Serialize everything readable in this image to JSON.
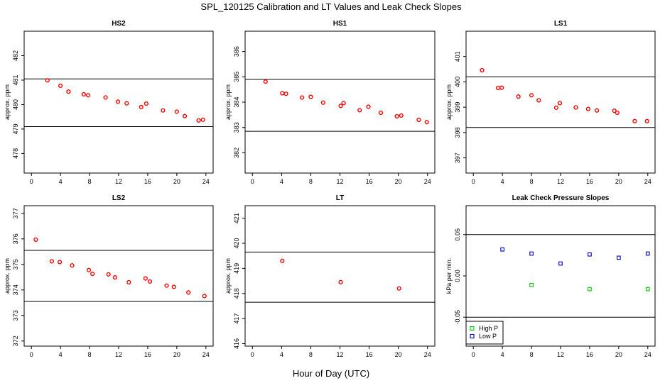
{
  "page": {
    "title": "SPL_120125  Calibration and LT Values and Leak Check Slopes",
    "xlabel": "Hour of Day (UTC)"
  },
  "colors": {
    "ref_line": "#000000",
    "point_red": "#ff0000",
    "high_p": "#00cc00",
    "low_p": "#0000cc"
  },
  "chart_data": [
    {
      "type": "scatter",
      "title": "HS2",
      "xlabel": "",
      "ylabel": "approx. ppm",
      "xlim": [
        -1,
        25
      ],
      "ylim": [
        477.2,
        483.0
      ],
      "x_ticks": [
        0,
        4,
        8,
        12,
        16,
        20,
        24
      ],
      "y_ticks": [
        478,
        479,
        480,
        481,
        482
      ],
      "hlines": [
        481.05,
        479.1
      ],
      "series": [
        {
          "name": "HS2",
          "color": "red",
          "x": [
            2.2,
            4.0,
            5.1,
            7.2,
            7.8,
            10.2,
            11.9,
            13.1,
            15.1,
            15.8,
            18.1,
            20.0,
            21.1,
            23.0,
            23.6
          ],
          "y": [
            480.99,
            480.77,
            480.53,
            480.42,
            480.38,
            480.29,
            480.12,
            480.05,
            479.9,
            480.04,
            479.76,
            479.71,
            479.53,
            479.35,
            479.38
          ]
        }
      ]
    },
    {
      "type": "scatter",
      "title": "HS1",
      "xlabel": "",
      "ylabel": "approx. ppm",
      "xlim": [
        -1,
        25
      ],
      "ylim": [
        381.2,
        386.8
      ],
      "x_ticks": [
        0,
        4,
        8,
        12,
        16,
        20,
        24
      ],
      "y_ticks": [
        382,
        383,
        384,
        385,
        386
      ],
      "hlines": [
        384.9,
        382.85
      ],
      "series": [
        {
          "name": "HS1",
          "color": "red",
          "x": [
            1.8,
            4.1,
            4.6,
            6.8,
            8.0,
            9.7,
            12.1,
            12.5,
            14.7,
            15.9,
            17.6,
            19.8,
            20.4,
            22.8,
            23.9
          ],
          "y": [
            384.81,
            384.35,
            384.33,
            384.18,
            384.21,
            383.98,
            383.85,
            383.96,
            383.68,
            383.82,
            383.58,
            383.44,
            383.47,
            383.3,
            383.21
          ]
        }
      ]
    },
    {
      "type": "scatter",
      "title": "LS1",
      "xlabel": "",
      "ylabel": "approx. ppm",
      "xlim": [
        -1,
        25
      ],
      "ylim": [
        396.4,
        402.0
      ],
      "x_ticks": [
        0,
        4,
        8,
        12,
        16,
        20,
        24
      ],
      "y_ticks": [
        397,
        398,
        399,
        400,
        401
      ],
      "hlines": [
        400.2,
        398.2
      ],
      "series": [
        {
          "name": "LS1",
          "color": "red",
          "x": [
            1.2,
            3.4,
            3.9,
            6.2,
            8.0,
            9.0,
            11.4,
            11.9,
            14.1,
            15.8,
            17.0,
            19.4,
            19.8,
            22.2,
            23.9
          ],
          "y": [
            400.46,
            399.76,
            399.77,
            399.42,
            399.47,
            399.27,
            398.98,
            399.16,
            398.99,
            398.93,
            398.87,
            398.86,
            398.78,
            398.45,
            398.45
          ]
        }
      ]
    },
    {
      "type": "scatter",
      "title": "LS2",
      "xlabel": "",
      "ylabel": "approx. ppm",
      "xlim": [
        -1,
        25
      ],
      "ylim": [
        371.8,
        377.3
      ],
      "x_ticks": [
        0,
        4,
        8,
        12,
        16,
        20,
        24
      ],
      "y_ticks": [
        372,
        373,
        374,
        375,
        376,
        377
      ],
      "hlines": [
        375.55,
        373.55
      ],
      "series": [
        {
          "name": "LS2",
          "color": "red",
          "x": [
            0.6,
            2.8,
            3.9,
            5.6,
            7.9,
            8.4,
            10.6,
            11.5,
            13.4,
            15.7,
            16.3,
            18.6,
            19.6,
            21.6,
            23.8
          ],
          "y": [
            375.97,
            375.12,
            375.09,
            374.96,
            374.78,
            374.63,
            374.61,
            374.49,
            374.3,
            374.45,
            374.33,
            374.17,
            374.12,
            373.9,
            373.76
          ]
        }
      ]
    },
    {
      "type": "scatter",
      "title": "LT",
      "xlabel": "",
      "ylabel": "approx. ppm",
      "xlim": [
        -1,
        25
      ],
      "ylim": [
        415.9,
        421.5
      ],
      "x_ticks": [
        0,
        4,
        8,
        12,
        16,
        20,
        24
      ],
      "y_ticks": [
        416,
        417,
        418,
        419,
        420,
        421
      ],
      "hlines": [
        419.65,
        417.65
      ],
      "series": [
        {
          "name": "LT",
          "color": "red",
          "x": [
            4.1,
            12.1,
            20.1
          ],
          "y": [
            419.3,
            418.45,
            418.2
          ]
        }
      ]
    },
    {
      "type": "scatter",
      "title": "Leak Check Pressure Slopes",
      "xlabel": "",
      "ylabel": "kPa per min.",
      "xlim": [
        -1,
        25
      ],
      "ylim": [
        -0.085,
        0.085
      ],
      "x_ticks": [
        0,
        4,
        8,
        12,
        16,
        20,
        24
      ],
      "y_ticks": [
        -0.05,
        0.0,
        0.05
      ],
      "y_tick_labels": [
        "-0.05",
        "0.00",
        "0.05"
      ],
      "hlines": [
        0.05,
        -0.05
      ],
      "legend": {
        "position": "bottom-left",
        "entries": [
          "High P",
          "Low P"
        ]
      },
      "series": [
        {
          "name": "High P",
          "color": "green",
          "x": [
            8,
            16,
            24
          ],
          "y": [
            -0.011,
            -0.016,
            -0.016
          ]
        },
        {
          "name": "Low P",
          "color": "blue",
          "x": [
            4,
            8,
            12,
            16,
            20,
            24
          ],
          "y": [
            0.032,
            0.027,
            0.015,
            0.026,
            0.022,
            0.027
          ]
        }
      ]
    }
  ]
}
